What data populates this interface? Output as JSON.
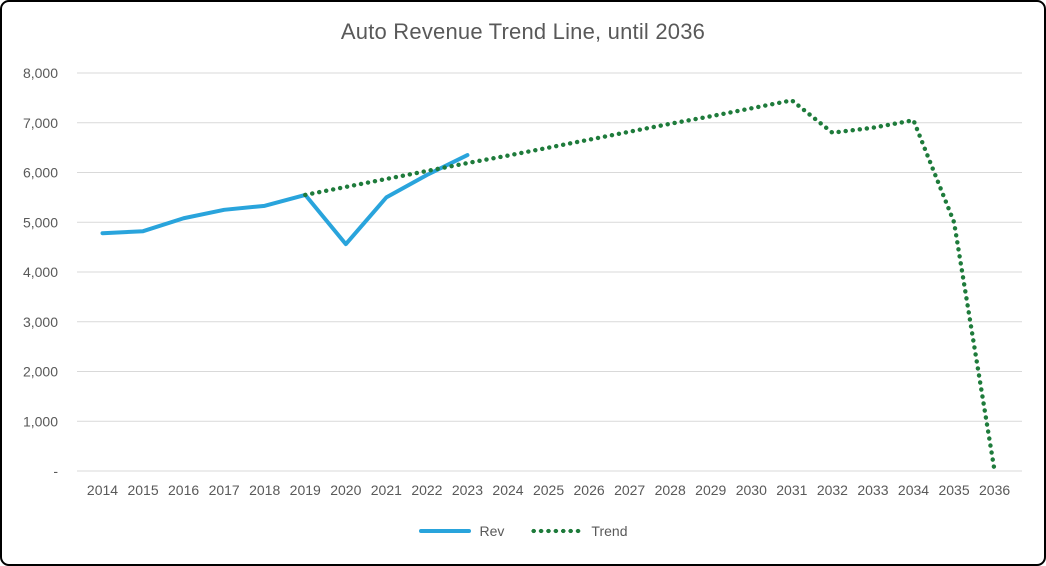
{
  "window": {
    "background_color": "#ffffff",
    "border_color": "#000000"
  },
  "chart_data": {
    "type": "line",
    "title": "Auto Revenue Trend Line, until 2036",
    "xlabel": "",
    "ylabel": "",
    "ylim": [
      0,
      8000
    ],
    "grid": true,
    "gridline_color": "#d9d9d9",
    "axis_label_color": "#595959",
    "title_color": "#595959",
    "legend_position": "bottom",
    "categories": [
      "2014",
      "2015",
      "2016",
      "2017",
      "2018",
      "2019",
      "2020",
      "2021",
      "2022",
      "2023",
      "2024",
      "2025",
      "2026",
      "2027",
      "2028",
      "2029",
      "2030",
      "2031",
      "2032",
      "2033",
      "2034",
      "2035",
      "2036"
    ],
    "y_ticks": [
      {
        "value": 8000,
        "label": "8,000"
      },
      {
        "value": 7000,
        "label": "7,000"
      },
      {
        "value": 6000,
        "label": "6,000"
      },
      {
        "value": 5000,
        "label": "5,000"
      },
      {
        "value": 4000,
        "label": "4,000"
      },
      {
        "value": 3000,
        "label": "3,000"
      },
      {
        "value": 2000,
        "label": "2,000"
      },
      {
        "value": 1000,
        "label": "1,000"
      },
      {
        "value": 0,
        "label": "-"
      }
    ],
    "series": [
      {
        "name": "Rev",
        "color": "#29a4dc",
        "line_style": "solid",
        "values": [
          4780,
          4820,
          5080,
          5250,
          5330,
          5550,
          4560,
          5500,
          5950,
          6350,
          null,
          null,
          null,
          null,
          null,
          null,
          null,
          null,
          null,
          null,
          null,
          null,
          null
        ]
      },
      {
        "name": "Trend",
        "color": "#1e7b3b",
        "line_style": "dotted",
        "values": [
          null,
          null,
          null,
          null,
          null,
          5550,
          5710,
          5870,
          6030,
          6190,
          6340,
          6500,
          6660,
          6820,
          6980,
          7130,
          7290,
          7450,
          6800,
          6900,
          7050,
          5000,
          0
        ]
      }
    ]
  }
}
